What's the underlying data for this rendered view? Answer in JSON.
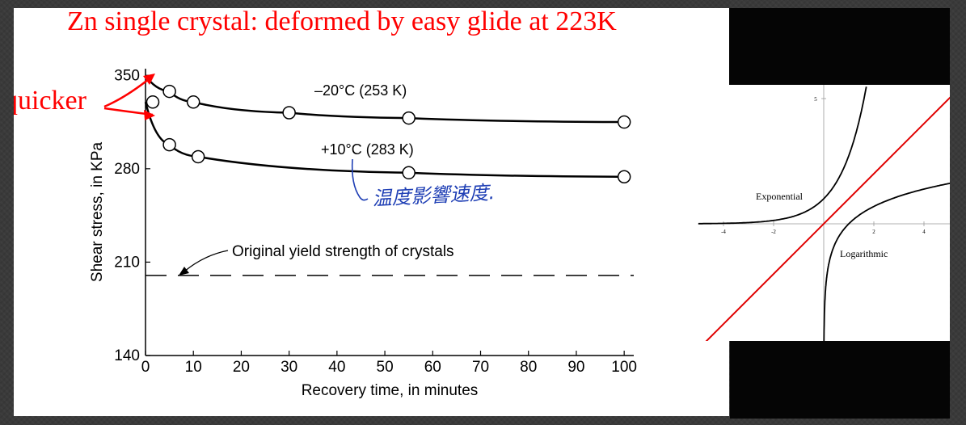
{
  "slide": {
    "title": "Zn single crystal: deformed by easy glide at 223K",
    "callout": "quicker",
    "handwritten_note": "温度影響速度."
  },
  "colors": {
    "title": "#ff0000",
    "callout": "#ff0000",
    "handwriting": "#1f3fb5",
    "curves": "#000000",
    "inset_line": "#e00000"
  },
  "chart_data": [
    {
      "type": "line",
      "title": "",
      "xlabel": "Recovery time, in minutes",
      "ylabel": "Shear stress, in KPa",
      "xlim": [
        0,
        102
      ],
      "ylim": [
        140,
        355
      ],
      "xticks": [
        0,
        10,
        20,
        30,
        40,
        50,
        60,
        70,
        80,
        90,
        100
      ],
      "yticks": [
        140,
        210,
        280,
        350
      ],
      "grid": false,
      "series": [
        {
          "name": "–20°C (253 K)",
          "markers": "open-circle",
          "x": [
            0,
            5,
            10,
            30,
            55,
            100
          ],
          "y": [
            350,
            338,
            330,
            322,
            318,
            315
          ]
        },
        {
          "name": "+10°C (283 K)",
          "markers": "open-circle",
          "x": [
            0,
            5,
            11,
            55,
            100
          ],
          "y": [
            330,
            298,
            289,
            277,
            274
          ]
        }
      ],
      "reference_lines": [
        {
          "label": "Original yield strength of crystals",
          "y": 200,
          "style": "dashed"
        }
      ]
    },
    {
      "type": "line",
      "xlim": [
        -5,
        5
      ],
      "ylim": [
        -5,
        5
      ],
      "xticks": [
        -4,
        -2,
        2,
        4
      ],
      "yticks": [
        5
      ],
      "grid": false,
      "series": [
        {
          "name": "Exponential",
          "function": "e^x"
        },
        {
          "name": "Logarithmic",
          "function": "ln x"
        },
        {
          "name": "",
          "function": "y = x",
          "color": "#e00000"
        }
      ]
    }
  ]
}
